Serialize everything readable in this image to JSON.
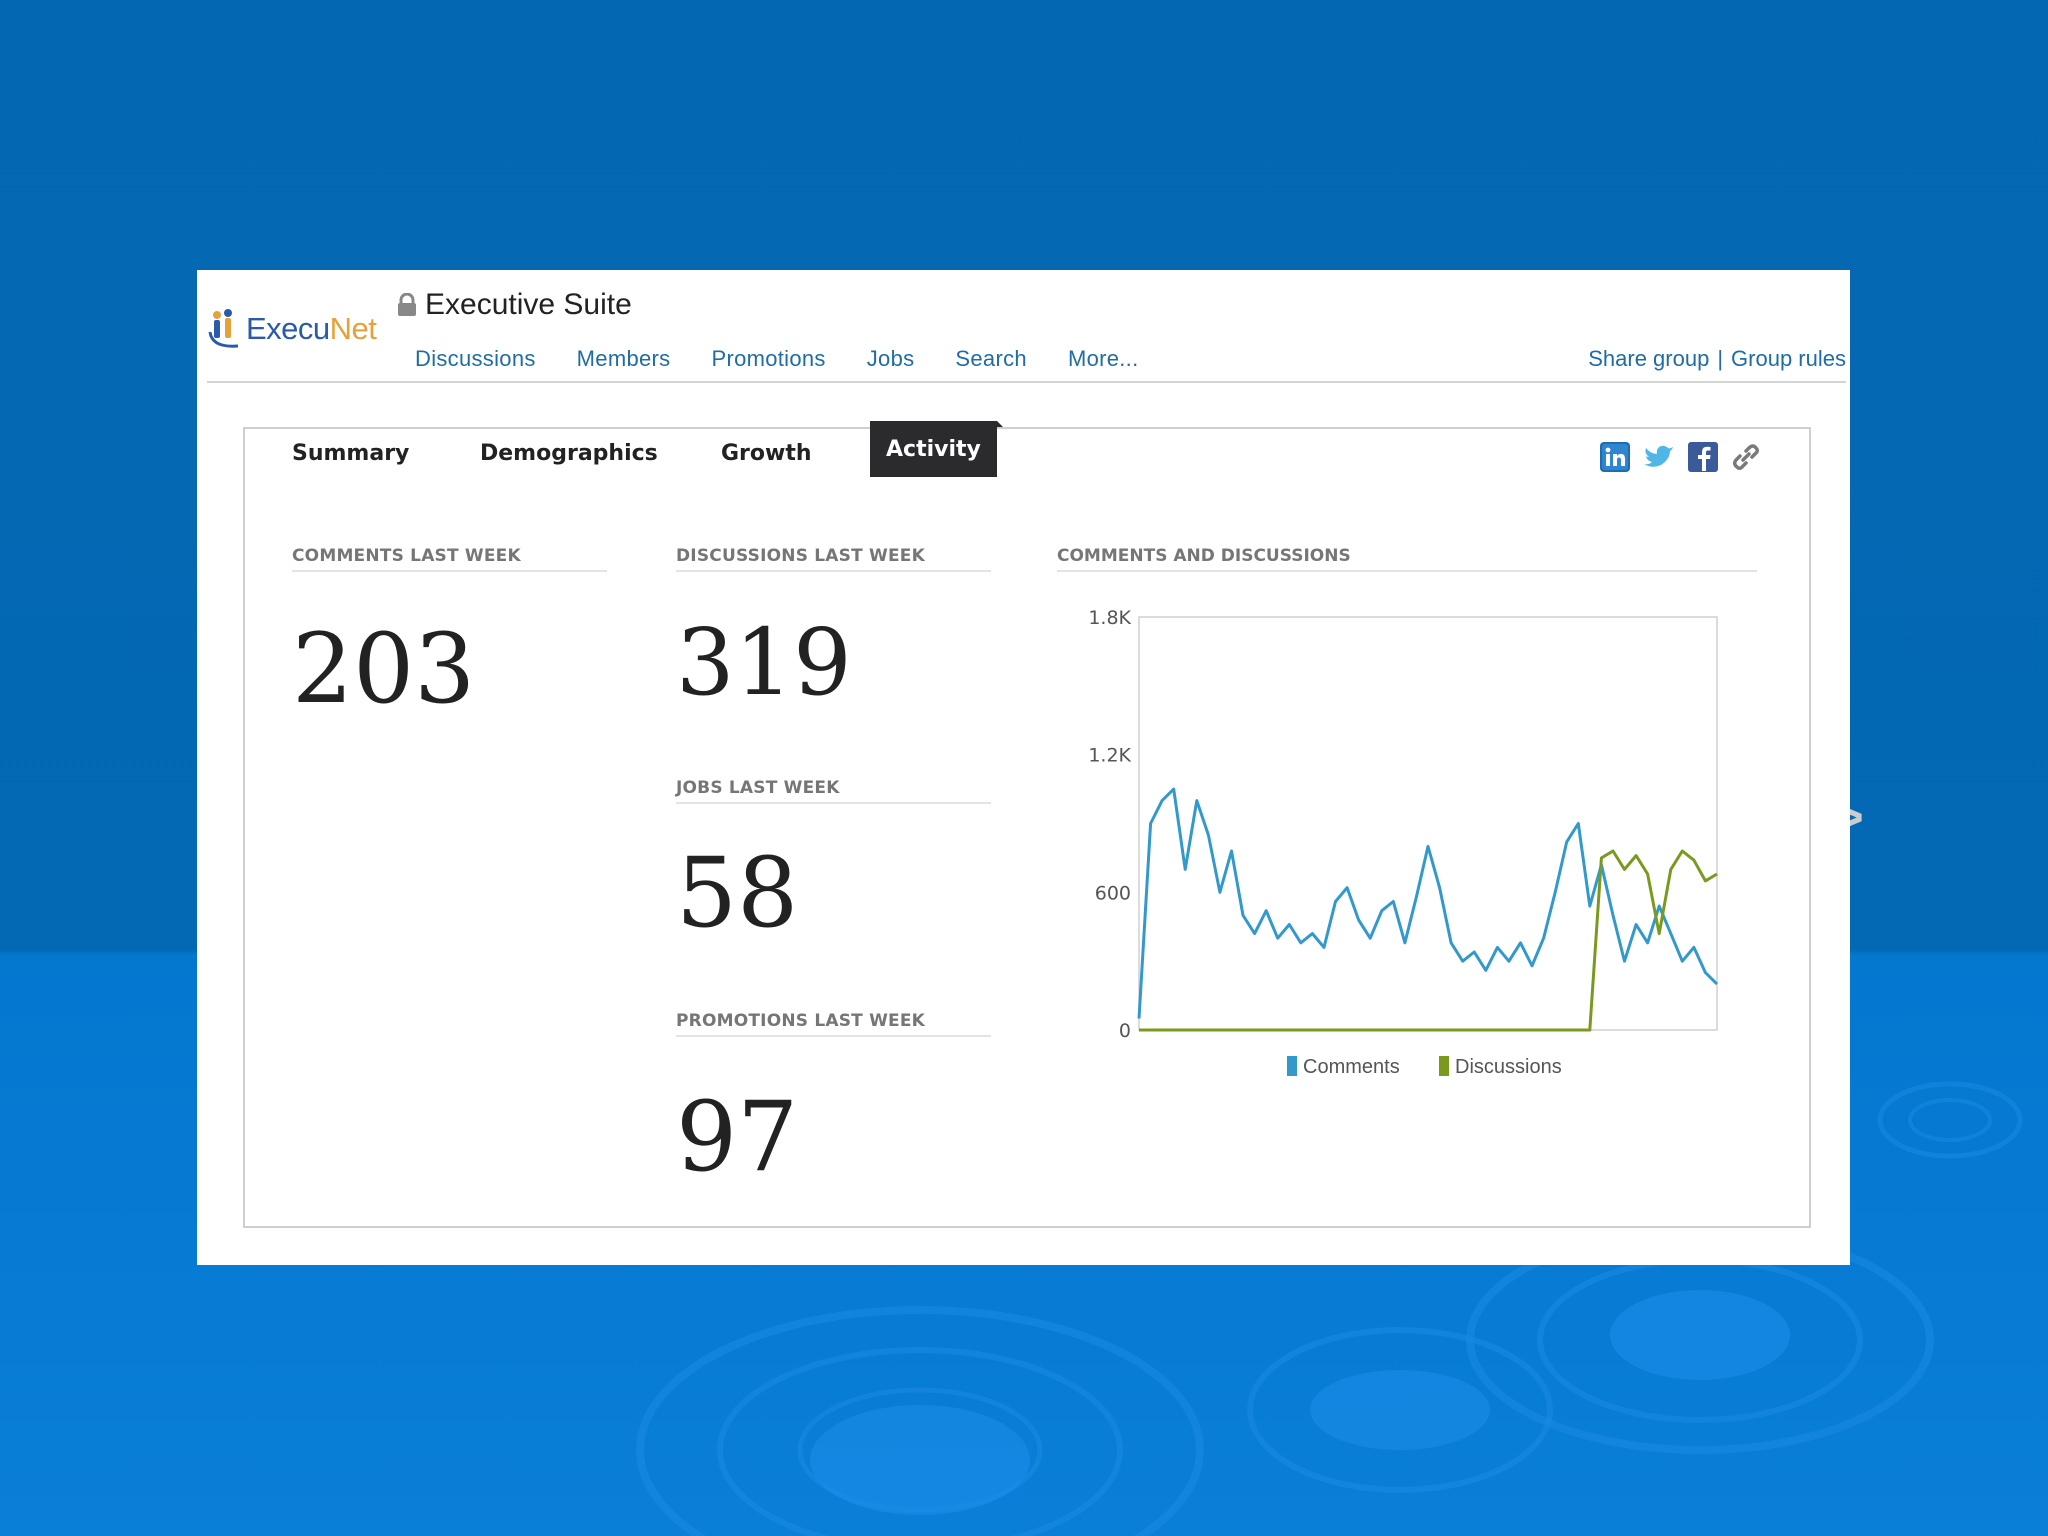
{
  "app": {
    "logo_text_a": "Execu",
    "logo_text_b": "Net",
    "group_title": "Executive Suite"
  },
  "top_nav": {
    "items": [
      "Discussions",
      "Members",
      "Promotions",
      "Jobs",
      "Search",
      "More..."
    ],
    "share_group": "Share group",
    "separator": "|",
    "group_rules": "Group rules"
  },
  "tabs": {
    "items": [
      "Summary",
      "Demographics",
      "Growth",
      "Activity"
    ],
    "active": "Activity"
  },
  "share_icons": [
    "linkedin-icon",
    "twitter-icon",
    "facebook-icon",
    "link-icon"
  ],
  "stats": {
    "comments_label": "COMMENTS LAST WEEK",
    "comments_value": "203",
    "discussions_label": "DISCUSSIONS LAST WEEK",
    "discussions_value": "319",
    "jobs_label": "JOBS LAST WEEK",
    "jobs_value": "58",
    "promotions_label": "PROMOTIONS LAST WEEK",
    "promotions_value": "97"
  },
  "nav_arrows": {
    "prev": "<",
    "next": ">"
  },
  "colors": {
    "comments": "#3399cc",
    "discussions": "#7a9a1e",
    "link": "#1f6da3",
    "background": "#0467b1"
  },
  "chart_data": {
    "type": "line",
    "title": "COMMENTS AND DISCUSSIONS",
    "xlabel": "",
    "ylabel": "",
    "ylim": [
      0,
      1800
    ],
    "yticks": [
      "0",
      "600",
      "1.2K",
      "1.8K"
    ],
    "ytick_values": [
      0,
      600,
      1200,
      1800
    ],
    "legend_position": "bottom",
    "grid": false,
    "x": [
      0,
      2,
      4,
      6,
      8,
      10,
      12,
      14,
      16,
      18,
      20,
      22,
      24,
      26,
      28,
      30,
      32,
      34,
      36,
      38,
      40,
      42,
      44,
      46,
      48,
      50,
      52,
      54,
      56,
      58,
      60,
      62,
      64,
      66,
      68,
      70,
      72,
      74,
      76,
      78,
      80,
      82,
      84,
      86,
      88,
      90,
      92,
      94,
      96,
      98,
      100
    ],
    "series": [
      {
        "name": "Comments",
        "values": [
          50,
          900,
          1000,
          1050,
          700,
          1000,
          850,
          600,
          780,
          500,
          420,
          520,
          400,
          460,
          380,
          420,
          360,
          560,
          620,
          480,
          400,
          520,
          560,
          380,
          580,
          800,
          620,
          380,
          300,
          340,
          260,
          360,
          300,
          380,
          280,
          400,
          600,
          820,
          900,
          540,
          720,
          500,
          300,
          460,
          380,
          540,
          420,
          300,
          360,
          250,
          200
        ]
      },
      {
        "name": "Discussions",
        "values": [
          0,
          0,
          0,
          0,
          0,
          0,
          0,
          0,
          0,
          0,
          0,
          0,
          0,
          0,
          0,
          0,
          0,
          0,
          0,
          0,
          0,
          0,
          0,
          0,
          0,
          0,
          0,
          0,
          0,
          0,
          0,
          0,
          0,
          0,
          0,
          0,
          0,
          0,
          0,
          0,
          750,
          780,
          700,
          760,
          680,
          420,
          700,
          780,
          740,
          650,
          680
        ]
      }
    ]
  }
}
